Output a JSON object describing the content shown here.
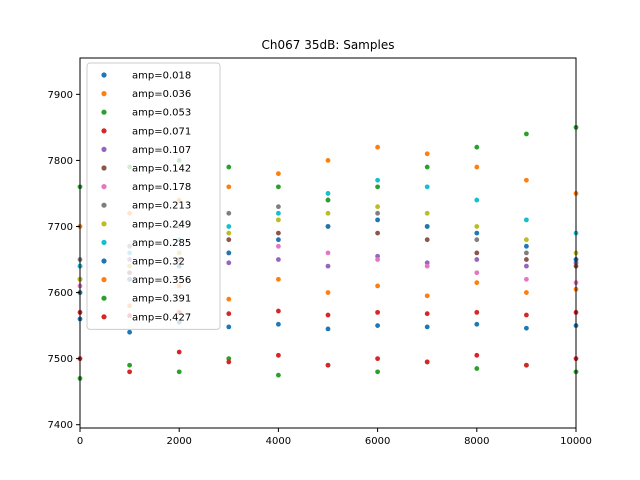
{
  "chart_data": {
    "type": "scatter",
    "title": "Ch067 35dB: Samples",
    "xlabel": "",
    "ylabel": "",
    "xlim": [
      0,
      10000
    ],
    "ylim": [
      7395,
      7955
    ],
    "x_ticks": [
      0,
      2000,
      4000,
      6000,
      8000,
      10000
    ],
    "x_tick_labels": [
      "0",
      "2000",
      "4000",
      "6000",
      "8000",
      "10000"
    ],
    "y_ticks": [
      7400,
      7500,
      7600,
      7700,
      7800,
      7900
    ],
    "y_tick_labels": [
      "7400",
      "7500",
      "7600",
      "7700",
      "7800",
      "7900"
    ],
    "grid": false,
    "legend_position": "upper-left",
    "series": [
      {
        "name": "amp=0.018",
        "color": "#1f77b4",
        "values": [
          [
            0,
            7560
          ],
          [
            1000,
            7540
          ],
          [
            2000,
            7555
          ],
          [
            3000,
            7548
          ],
          [
            4000,
            7552
          ],
          [
            5000,
            7545
          ],
          [
            6000,
            7550
          ],
          [
            7000,
            7548
          ],
          [
            8000,
            7552
          ],
          [
            9000,
            7546
          ],
          [
            10000,
            7550
          ]
        ]
      },
      {
        "name": "amp=0.036",
        "color": "#ff7f0e",
        "values": [
          [
            0,
            7600
          ],
          [
            1000,
            7580
          ],
          [
            2000,
            7610
          ],
          [
            3000,
            7590
          ],
          [
            4000,
            7620
          ],
          [
            5000,
            7600
          ],
          [
            6000,
            7610
          ],
          [
            7000,
            7595
          ],
          [
            8000,
            7615
          ],
          [
            9000,
            7600
          ],
          [
            10000,
            7605
          ]
        ]
      },
      {
        "name": "amp=0.053",
        "color": "#2ca02c",
        "values": [
          [
            0,
            7470
          ],
          [
            1000,
            7490
          ],
          [
            2000,
            7480
          ],
          [
            3000,
            7500
          ],
          [
            4000,
            7475
          ],
          [
            5000,
            7490
          ],
          [
            6000,
            7480
          ],
          [
            7000,
            7495
          ],
          [
            8000,
            7485
          ],
          [
            9000,
            7490
          ],
          [
            10000,
            7480
          ]
        ]
      },
      {
        "name": "amp=0.071",
        "color": "#d62728",
        "values": [
          [
            0,
            7500
          ],
          [
            1000,
            7480
          ],
          [
            2000,
            7510
          ],
          [
            3000,
            7495
          ],
          [
            4000,
            7505
          ],
          [
            5000,
            7490
          ],
          [
            6000,
            7500
          ],
          [
            7000,
            7495
          ],
          [
            8000,
            7505
          ],
          [
            9000,
            7490
          ],
          [
            10000,
            7500
          ]
        ]
      },
      {
        "name": "amp=0.107",
        "color": "#9467bd",
        "values": [
          [
            0,
            7640
          ],
          [
            1000,
            7650
          ],
          [
            2000,
            7660
          ],
          [
            3000,
            7645
          ],
          [
            4000,
            7650
          ],
          [
            5000,
            7640
          ],
          [
            6000,
            7655
          ],
          [
            7000,
            7645
          ],
          [
            8000,
            7650
          ],
          [
            9000,
            7640
          ],
          [
            10000,
            7645
          ]
        ]
      },
      {
        "name": "amp=0.142",
        "color": "#8c564b",
        "values": [
          [
            0,
            7620
          ],
          [
            1000,
            7630
          ],
          [
            2000,
            7650
          ],
          [
            3000,
            7680
          ],
          [
            4000,
            7690
          ],
          [
            5000,
            7700
          ],
          [
            6000,
            7690
          ],
          [
            7000,
            7680
          ],
          [
            8000,
            7660
          ],
          [
            9000,
            7650
          ],
          [
            10000,
            7640
          ]
        ]
      },
      {
        "name": "amp=0.178",
        "color": "#e377c2",
        "values": [
          [
            0,
            7610
          ],
          [
            1000,
            7620
          ],
          [
            2000,
            7640
          ],
          [
            3000,
            7660
          ],
          [
            4000,
            7670
          ],
          [
            5000,
            7660
          ],
          [
            6000,
            7650
          ],
          [
            7000,
            7640
          ],
          [
            8000,
            7630
          ],
          [
            9000,
            7620
          ],
          [
            10000,
            7615
          ]
        ]
      },
      {
        "name": "amp=0.213",
        "color": "#7f7f7f",
        "values": [
          [
            0,
            7650
          ],
          [
            1000,
            7670
          ],
          [
            2000,
            7700
          ],
          [
            3000,
            7720
          ],
          [
            4000,
            7730
          ],
          [
            5000,
            7740
          ],
          [
            6000,
            7720
          ],
          [
            7000,
            7700
          ],
          [
            8000,
            7680
          ],
          [
            9000,
            7660
          ],
          [
            10000,
            7650
          ]
        ]
      },
      {
        "name": "amp=0.249",
        "color": "#bcbd22",
        "values": [
          [
            0,
            7620
          ],
          [
            1000,
            7640
          ],
          [
            2000,
            7660
          ],
          [
            3000,
            7690
          ],
          [
            4000,
            7710
          ],
          [
            5000,
            7720
          ],
          [
            6000,
            7730
          ],
          [
            7000,
            7720
          ],
          [
            8000,
            7700
          ],
          [
            9000,
            7680
          ],
          [
            10000,
            7660
          ]
        ]
      },
      {
        "name": "amp=0.285",
        "color": "#17becf",
        "values": [
          [
            0,
            7640
          ],
          [
            1000,
            7660
          ],
          [
            2000,
            7680
          ],
          [
            3000,
            7700
          ],
          [
            4000,
            7720
          ],
          [
            5000,
            7750
          ],
          [
            6000,
            7770
          ],
          [
            7000,
            7760
          ],
          [
            8000,
            7740
          ],
          [
            9000,
            7710
          ],
          [
            10000,
            7690
          ]
        ]
      },
      {
        "name": "amp=0.32",
        "color": "#1f77b4",
        "values": [
          [
            0,
            7600
          ],
          [
            1000,
            7620
          ],
          [
            2000,
            7640
          ],
          [
            3000,
            7660
          ],
          [
            4000,
            7680
          ],
          [
            5000,
            7700
          ],
          [
            6000,
            7710
          ],
          [
            7000,
            7700
          ],
          [
            8000,
            7690
          ],
          [
            9000,
            7670
          ],
          [
            10000,
            7650
          ]
        ]
      },
      {
        "name": "amp=0.356",
        "color": "#ff7f0e",
        "values": [
          [
            0,
            7700
          ],
          [
            1000,
            7720
          ],
          [
            2000,
            7740
          ],
          [
            3000,
            7760
          ],
          [
            4000,
            7780
          ],
          [
            5000,
            7800
          ],
          [
            6000,
            7820
          ],
          [
            7000,
            7810
          ],
          [
            8000,
            7790
          ],
          [
            9000,
            7770
          ],
          [
            10000,
            7750
          ]
        ]
      },
      {
        "name": "amp=0.391",
        "color": "#2ca02c",
        "values": [
          [
            0,
            7760
          ],
          [
            1000,
            7790
          ],
          [
            2000,
            7800
          ],
          [
            3000,
            7790
          ],
          [
            4000,
            7760
          ],
          [
            5000,
            7740
          ],
          [
            6000,
            7760
          ],
          [
            7000,
            7790
          ],
          [
            8000,
            7820
          ],
          [
            9000,
            7840
          ],
          [
            10000,
            7850
          ]
        ]
      },
      {
        "name": "amp=0.427",
        "color": "#d62728",
        "values": [
          [
            0,
            7570
          ],
          [
            1000,
            7565
          ],
          [
            2000,
            7570
          ],
          [
            3000,
            7568
          ],
          [
            4000,
            7572
          ],
          [
            5000,
            7566
          ],
          [
            6000,
            7570
          ],
          [
            7000,
            7568
          ],
          [
            8000,
            7570
          ],
          [
            9000,
            7566
          ],
          [
            10000,
            7570
          ]
        ]
      }
    ]
  }
}
